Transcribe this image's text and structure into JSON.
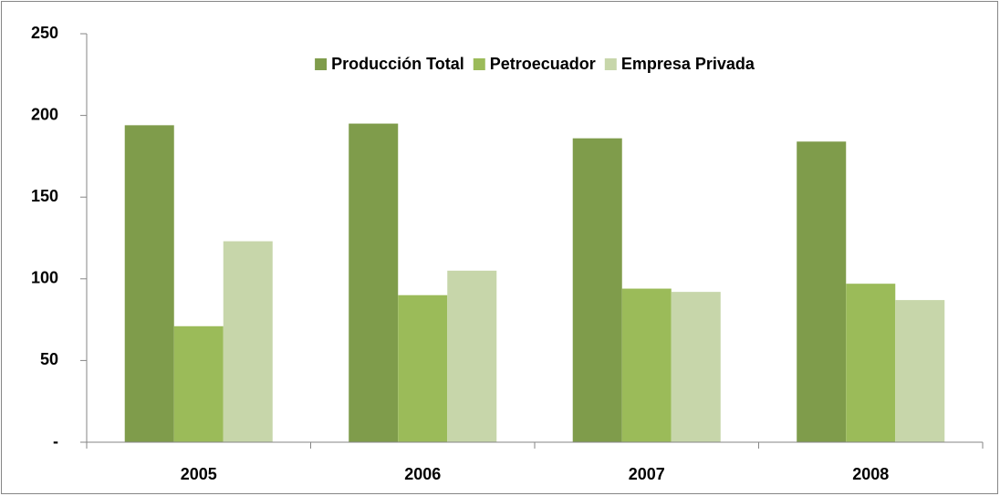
{
  "chart_data": {
    "type": "bar",
    "categories": [
      "2005",
      "2006",
      "2007",
      "2008"
    ],
    "series": [
      {
        "name": "Producción Total",
        "color": "#7f9c4b",
        "values": [
          194,
          195,
          186,
          184
        ]
      },
      {
        "name": "Petroecuador",
        "color": "#9bbb59",
        "values": [
          71,
          90,
          94,
          97
        ]
      },
      {
        "name": "Empresa Privada",
        "color": "#c7d6aa",
        "values": [
          123,
          105,
          92,
          87
        ]
      }
    ],
    "ylim": [
      0,
      250
    ],
    "yticks": [
      {
        "value": 0,
        "label": "-"
      },
      50,
      100,
      150,
      200,
      250
    ],
    "grid": false,
    "legend": "top"
  }
}
